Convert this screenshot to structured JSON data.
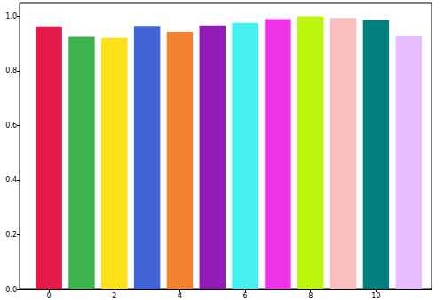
{
  "chart_data": {
    "type": "bar",
    "x": [
      0,
      1,
      2,
      3,
      4,
      5,
      6,
      7,
      8,
      9,
      10,
      11
    ],
    "values": [
      0.963,
      0.925,
      0.921,
      0.965,
      0.943,
      0.966,
      0.976,
      0.99,
      1.0,
      0.994,
      0.986,
      0.93
    ],
    "colors": [
      "#e6194b",
      "#3cb44b",
      "#ffe119",
      "#4363d8",
      "#f58231",
      "#911eb4",
      "#46f0f0",
      "#f032e6",
      "#bcf60c",
      "#fabebe",
      "#008080",
      "#e6beff"
    ],
    "xlim": [
      -0.9,
      11.7
    ],
    "xticks": [
      0,
      2,
      4,
      6,
      8,
      10
    ],
    "ylim": [
      0,
      1.05
    ],
    "yticks": [
      {
        "value": 0,
        "label": "0.0"
      },
      {
        "value": 0.2,
        "label": "0.2"
      },
      {
        "value": 0.4,
        "label": "0.4"
      },
      {
        "value": 0.6,
        "label": "0.6"
      },
      {
        "value": 0.8,
        "label": "0.8"
      },
      {
        "value": 1.0,
        "label": "1.0"
      }
    ],
    "grid": false
  }
}
